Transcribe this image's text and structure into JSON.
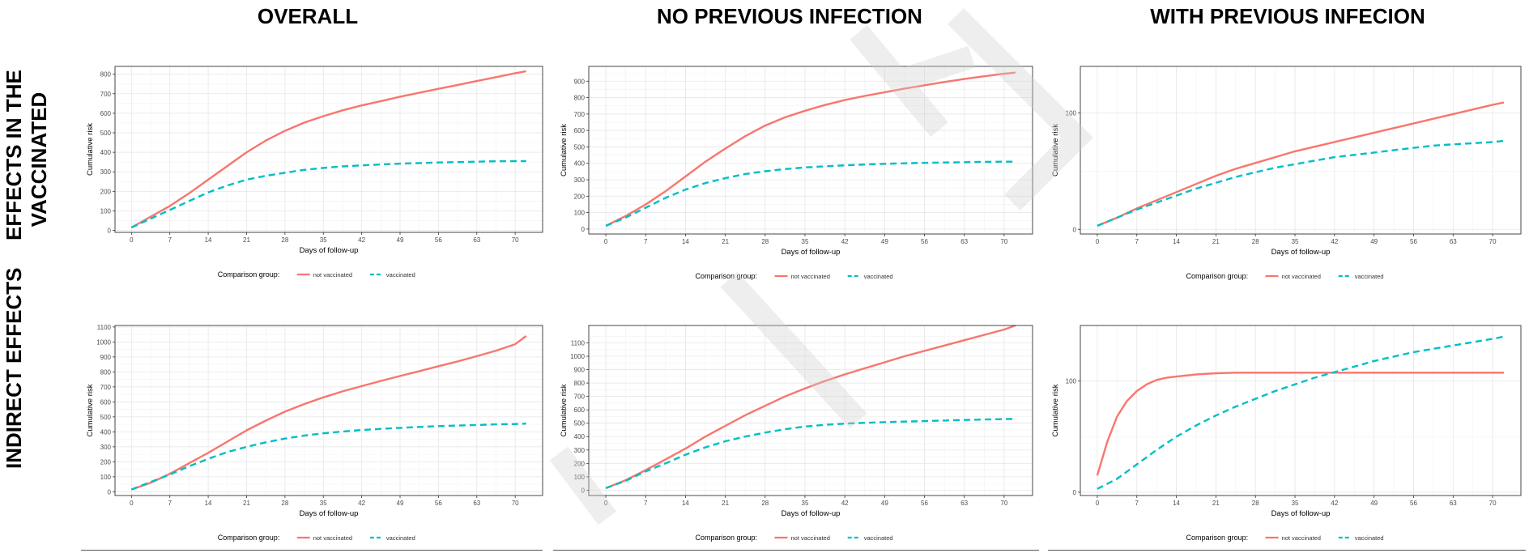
{
  "column_titles": [
    "OVERALL",
    "NO PREVIOUS INFECTION",
    "WITH PREVIOUS INFECION"
  ],
  "row_titles": [
    [
      "EFFECTS IN THE",
      "VACCINATED"
    ],
    [
      "INDIRECT EFFECTS"
    ]
  ],
  "colors": {
    "not_vaccinated": "#F8766D",
    "vaccinated": "#00BFC4",
    "grid_major": "#e6e6e6",
    "grid_minor": "#f2f2f2",
    "panel_border": "#333333",
    "watermark": "#d0d0d0"
  },
  "chart_data": [
    {
      "type": "line",
      "x_ticks": [
        0,
        7,
        14,
        21,
        28,
        35,
        42,
        49,
        56,
        63,
        70
      ],
      "xlim": [
        -3,
        75
      ],
      "ylim": [
        -10,
        840
      ],
      "y_ticks": [
        0,
        100,
        200,
        300,
        400,
        500,
        600,
        700,
        800
      ],
      "xlabel": "Days of follow-up",
      "ylabel": "Cumulative risk",
      "legend_title": "Comparison group:",
      "legend_position": "bottom",
      "grid": true,
      "series": [
        {
          "name": "not vaccinated",
          "line_style": "solid",
          "x": [
            0,
            3.5,
            7,
            10.5,
            14,
            17.5,
            21,
            24.5,
            28,
            31.5,
            35,
            38.5,
            42,
            45.5,
            49,
            52.5,
            56,
            59.5,
            63,
            66.5,
            70,
            72
          ],
          "y": [
            15,
            70,
            125,
            190,
            260,
            330,
            400,
            460,
            510,
            552,
            585,
            615,
            640,
            662,
            685,
            705,
            725,
            745,
            765,
            785,
            805,
            815
          ]
        },
        {
          "name": "vaccinated",
          "line_style": "dashed",
          "x": [
            0,
            3.5,
            7,
            10.5,
            14,
            17.5,
            21,
            24.5,
            28,
            31.5,
            35,
            38.5,
            42,
            45.5,
            49,
            52.5,
            56,
            59.5,
            63,
            66.5,
            70,
            72
          ],
          "y": [
            15,
            60,
            105,
            150,
            195,
            230,
            260,
            280,
            295,
            310,
            320,
            328,
            333,
            338,
            342,
            345,
            348,
            350,
            352,
            354,
            355,
            355
          ]
        }
      ]
    },
    {
      "type": "line",
      "x_ticks": [
        0,
        7,
        14,
        21,
        28,
        35,
        42,
        49,
        56,
        63,
        70
      ],
      "xlim": [
        -3,
        75
      ],
      "ylim": [
        -30,
        990
      ],
      "y_ticks": [
        0,
        100,
        200,
        300,
        400,
        500,
        600,
        700,
        800,
        900
      ],
      "xlabel": "Days of follow-up",
      "ylabel": "Cumulative risk",
      "legend_title": "Comparison group:",
      "legend_position": "bottom",
      "grid": true,
      "series": [
        {
          "name": "not vaccinated",
          "line_style": "solid",
          "x": [
            0,
            3.5,
            7,
            10.5,
            14,
            17.5,
            21,
            24.5,
            28,
            31.5,
            35,
            38.5,
            42,
            45.5,
            49,
            52.5,
            56,
            59.5,
            63,
            66.5,
            70,
            72
          ],
          "y": [
            20,
            80,
            150,
            230,
            320,
            410,
            490,
            565,
            630,
            680,
            720,
            755,
            785,
            810,
            833,
            855,
            875,
            895,
            913,
            930,
            945,
            952
          ]
        },
        {
          "name": "vaccinated",
          "line_style": "dashed",
          "x": [
            0,
            3.5,
            7,
            10.5,
            14,
            17.5,
            21,
            24.5,
            28,
            31.5,
            35,
            38.5,
            42,
            45.5,
            49,
            52.5,
            56,
            59.5,
            63,
            66.5,
            70,
            72
          ],
          "y": [
            20,
            70,
            130,
            190,
            240,
            280,
            310,
            335,
            352,
            365,
            375,
            382,
            388,
            393,
            397,
            400,
            403,
            405,
            407,
            409,
            410,
            410
          ]
        }
      ]
    },
    {
      "type": "line",
      "x_ticks": [
        0,
        7,
        14,
        21,
        28,
        35,
        42,
        49,
        56,
        63,
        70
      ],
      "xlim": [
        -3,
        75
      ],
      "ylim": [
        -4,
        140
      ],
      "y_ticks": [
        0,
        100
      ],
      "xlabel": "Days of follow-up",
      "ylabel": "Cumulative risk",
      "legend_title": "Comparison group:",
      "legend_position": "bottom",
      "grid": true,
      "series": [
        {
          "name": "not vaccinated",
          "line_style": "solid",
          "x": [
            0,
            3.5,
            7,
            10.5,
            14,
            17.5,
            21,
            24.5,
            28,
            31.5,
            35,
            38.5,
            42,
            45.5,
            49,
            52.5,
            56,
            59.5,
            63,
            66.5,
            70,
            72
          ],
          "y": [
            3,
            10,
            18,
            25,
            32,
            39,
            46,
            52,
            57,
            62,
            67,
            71,
            75,
            79,
            83,
            87,
            91,
            95,
            99,
            103,
            107,
            109
          ]
        },
        {
          "name": "vaccinated",
          "line_style": "dashed",
          "x": [
            0,
            3.5,
            7,
            10.5,
            14,
            17.5,
            21,
            24.5,
            28,
            31.5,
            35,
            38.5,
            42,
            45.5,
            49,
            52.5,
            56,
            59.5,
            63,
            66.5,
            70,
            72
          ],
          "y": [
            3,
            10,
            17,
            23,
            29,
            35,
            40,
            45,
            49,
            53,
            56,
            59,
            62,
            64,
            66,
            68,
            70,
            72,
            73,
            74,
            75,
            76
          ]
        }
      ]
    },
    {
      "type": "line",
      "x_ticks": [
        0,
        7,
        14,
        21,
        28,
        35,
        42,
        49,
        56,
        63,
        70
      ],
      "xlim": [
        -3,
        75
      ],
      "ylim": [
        -25,
        1110
      ],
      "y_ticks": [
        0,
        100,
        200,
        300,
        400,
        500,
        600,
        700,
        800,
        900,
        1000,
        1100
      ],
      "xlabel": "Days of follow-up",
      "ylabel": "Cumulative risk",
      "legend_title": "Comparison group:",
      "legend_position": "bottom",
      "grid": true,
      "series": [
        {
          "name": "not vaccinated",
          "line_style": "solid",
          "x": [
            0,
            3.5,
            7,
            10.5,
            14,
            17.5,
            21,
            24.5,
            28,
            31.5,
            35,
            38.5,
            42,
            45.5,
            49,
            52.5,
            56,
            59.5,
            63,
            66.5,
            70,
            72
          ],
          "y": [
            15,
            60,
            120,
            190,
            260,
            335,
            410,
            475,
            535,
            585,
            630,
            670,
            705,
            740,
            773,
            805,
            838,
            870,
            905,
            942,
            985,
            1040
          ]
        },
        {
          "name": "vaccinated",
          "line_style": "dashed",
          "x": [
            0,
            3.5,
            7,
            10.5,
            14,
            17.5,
            21,
            24.5,
            28,
            31.5,
            35,
            38.5,
            42,
            45.5,
            49,
            52.5,
            56,
            59.5,
            63,
            66.5,
            70,
            72
          ],
          "y": [
            15,
            65,
            115,
            170,
            220,
            265,
            300,
            330,
            355,
            375,
            390,
            402,
            412,
            420,
            427,
            433,
            438,
            442,
            446,
            450,
            452,
            455
          ]
        }
      ]
    },
    {
      "type": "line",
      "x_ticks": [
        0,
        7,
        14,
        21,
        28,
        35,
        42,
        49,
        56,
        63,
        70
      ],
      "xlim": [
        -3,
        75
      ],
      "ylim": [
        -40,
        1230
      ],
      "y_ticks": [
        0,
        100,
        200,
        300,
        400,
        500,
        600,
        700,
        800,
        900,
        1000,
        1100
      ],
      "xlabel": "Days of follow-up",
      "ylabel": "Cumulative risk",
      "legend_title": "Comparison group:",
      "legend_position": "bottom",
      "grid": true,
      "series": [
        {
          "name": "not vaccinated",
          "line_style": "solid",
          "x": [
            0,
            3.5,
            7,
            10.5,
            14,
            17.5,
            21,
            24.5,
            28,
            31.5,
            35,
            38.5,
            42,
            45.5,
            49,
            52.5,
            56,
            59.5,
            63,
            66.5,
            70,
            72
          ],
          "y": [
            15,
            75,
            150,
            230,
            310,
            400,
            480,
            560,
            630,
            700,
            760,
            815,
            865,
            910,
            955,
            1000,
            1040,
            1080,
            1120,
            1160,
            1200,
            1230
          ]
        },
        {
          "name": "vaccinated",
          "line_style": "dashed",
          "x": [
            0,
            3.5,
            7,
            10.5,
            14,
            17.5,
            21,
            24.5,
            28,
            31.5,
            35,
            38.5,
            42,
            45.5,
            49,
            52.5,
            56,
            59.5,
            63,
            66.5,
            70,
            72
          ],
          "y": [
            15,
            70,
            140,
            200,
            265,
            320,
            365,
            400,
            430,
            455,
            475,
            488,
            497,
            503,
            508,
            512,
            516,
            520,
            524,
            528,
            531,
            533
          ]
        }
      ]
    },
    {
      "type": "line",
      "x_ticks": [
        0,
        7,
        14,
        21,
        28,
        35,
        42,
        49,
        56,
        63,
        70
      ],
      "xlim": [
        -3,
        75
      ],
      "ylim": [
        -3,
        150
      ],
      "y_ticks": [
        0,
        100
      ],
      "xlabel": "Days of follow-up",
      "ylabel": "Cumulative risk",
      "legend_title": "Comparison group:",
      "legend_position": "bottom",
      "grid": true,
      "series": [
        {
          "name": "not vaccinated",
          "line_style": "solid",
          "x": [
            0,
            1.75,
            3.5,
            5.25,
            7,
            8.75,
            10.5,
            12.25,
            14,
            17.5,
            21,
            24.5,
            28,
            35,
            42,
            49,
            56,
            63,
            70,
            72
          ],
          "y": [
            15,
            45,
            68,
            82,
            91,
            97,
            101,
            103,
            104,
            106,
            107,
            107.5,
            107.5,
            107.5,
            107.5,
            107.5,
            107.5,
            107.5,
            107.5,
            107.5
          ]
        },
        {
          "name": "vaccinated",
          "line_style": "dashed",
          "x": [
            0,
            3.5,
            7,
            10.5,
            14,
            17.5,
            21,
            24.5,
            28,
            31.5,
            35,
            38.5,
            42,
            45.5,
            49,
            52.5,
            56,
            59.5,
            63,
            66.5,
            70,
            72
          ],
          "y": [
            3,
            12,
            25,
            38,
            50,
            60,
            69,
            77,
            84,
            91,
            97,
            103,
            108,
            113,
            118,
            122,
            126,
            129,
            132,
            135,
            138,
            140
          ]
        }
      ]
    }
  ]
}
